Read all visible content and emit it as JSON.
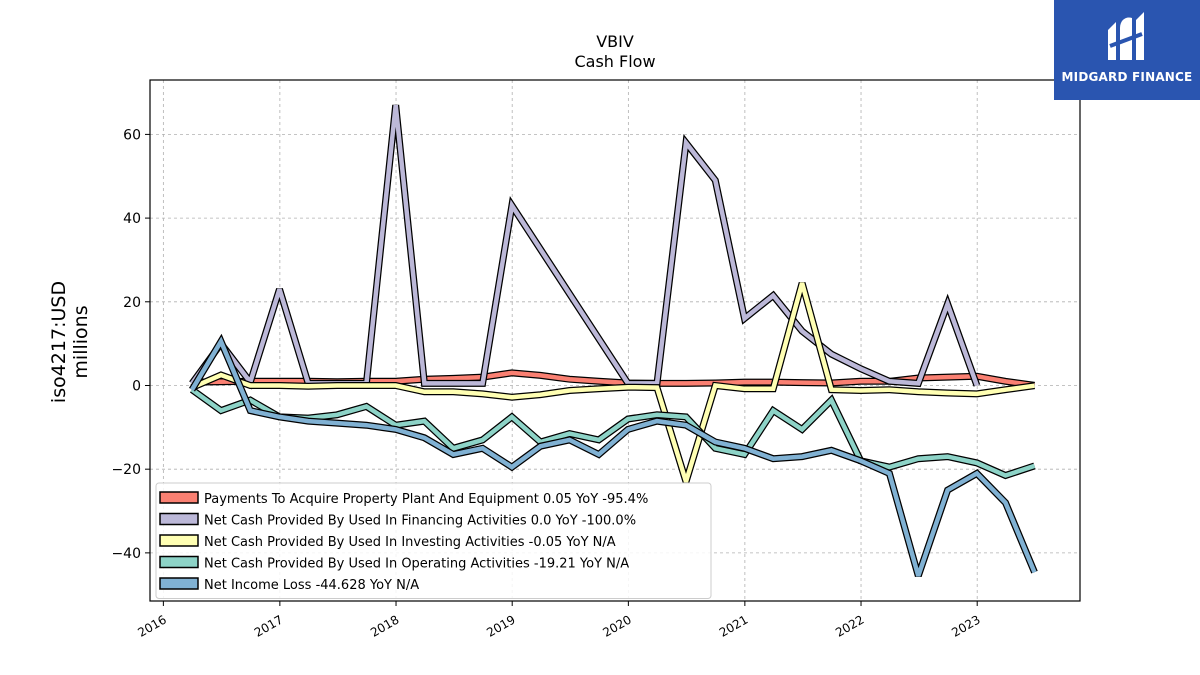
{
  "logo": {
    "brand": "MIDGARD FINANCE",
    "icon": "midgard-logo-icon",
    "color": "#2a55b0"
  },
  "chart_data": {
    "type": "line",
    "title": "VBIV",
    "subtitle": "Cash Flow",
    "ylabel_line1": "iso4217:USD",
    "ylabel_line2": "millions",
    "xlim": [
      "2015-11-20",
      "2023-11-20"
    ],
    "ylim": [
      -51.5,
      73
    ],
    "yticks": [
      -40,
      -20,
      0,
      20,
      40,
      60
    ],
    "ytick_labels": [
      "−40",
      "−20",
      "0",
      "20",
      "40",
      "60"
    ],
    "xticks": [
      "2016-01-01",
      "2017-01-01",
      "2018-01-01",
      "2019-01-01",
      "2020-01-01",
      "2021-01-01",
      "2022-01-01",
      "2023-01-01"
    ],
    "xtick_labels": [
      "2016",
      "2017",
      "2018",
      "2019",
      "2020",
      "2021",
      "2022",
      "2023"
    ],
    "grid": true,
    "legend_position": "lower-left",
    "series": [
      {
        "name": "Payments To Acquire Property Plant And Equipment",
        "legend": "Payments To Acquire Property Plant And Equipment  0.05 YoY -95.4%",
        "color": "#fa8072",
        "points": [
          [
            "2016-03-31",
            0.8
          ],
          [
            "2016-06-30",
            0.9
          ],
          [
            "2016-09-30",
            1.0
          ],
          [
            "2016-12-31",
            1.0
          ],
          [
            "2017-03-31",
            1.0
          ],
          [
            "2017-06-30",
            0.9
          ],
          [
            "2017-09-30",
            1.0
          ],
          [
            "2017-12-31",
            1.0
          ],
          [
            "2018-03-31",
            1.5
          ],
          [
            "2018-06-30",
            1.7
          ],
          [
            "2018-09-30",
            2.0
          ],
          [
            "2018-12-31",
            3.0
          ],
          [
            "2019-03-31",
            2.4
          ],
          [
            "2019-06-30",
            1.5
          ],
          [
            "2019-09-30",
            1.0
          ],
          [
            "2019-12-31",
            0.6
          ],
          [
            "2020-03-31",
            0.5
          ],
          [
            "2020-06-30",
            0.5
          ],
          [
            "2020-09-30",
            0.6
          ],
          [
            "2020-12-31",
            0.8
          ],
          [
            "2021-03-31",
            0.8
          ],
          [
            "2021-06-30",
            0.7
          ],
          [
            "2021-09-30",
            0.6
          ],
          [
            "2021-12-31",
            1.0
          ],
          [
            "2022-03-31",
            1.0
          ],
          [
            "2022-06-30",
            1.8
          ],
          [
            "2022-09-30",
            2.0
          ],
          [
            "2022-12-31",
            2.2
          ],
          [
            "2023-03-31",
            1.0
          ],
          [
            "2023-06-30",
            0.05
          ]
        ]
      },
      {
        "name": "Net Cash Provided By Used In Financing Activities",
        "legend": "Net Cash Provided By Used In Financing Activities  0.0 YoY -100.0%",
        "color": "#bcb8d8",
        "points": [
          [
            "2016-03-31",
            0.5
          ],
          [
            "2016-06-30",
            10.0
          ],
          [
            "2016-09-30",
            0.8
          ],
          [
            "2016-12-31",
            23.0
          ],
          [
            "2017-03-31",
            0.5
          ],
          [
            "2017-06-30",
            0.5
          ],
          [
            "2017-09-30",
            0.5
          ],
          [
            "2017-12-31",
            67.0
          ],
          [
            "2018-03-31",
            0.5
          ],
          [
            "2018-06-30",
            0.5
          ],
          [
            "2018-09-30",
            0.5
          ],
          [
            "2018-12-31",
            43.0
          ],
          [
            "2019-12-31",
            0.5
          ],
          [
            "2020-03-31",
            0.5
          ],
          [
            "2020-06-30",
            58.0
          ],
          [
            "2020-09-30",
            49.0
          ],
          [
            "2020-12-31",
            16.0
          ],
          [
            "2021-03-31",
            21.5
          ],
          [
            "2021-06-30",
            13.0
          ],
          [
            "2021-09-30",
            7.5
          ],
          [
            "2021-12-31",
            4.0
          ],
          [
            "2022-03-31",
            1.0
          ],
          [
            "2022-06-30",
            0.5
          ],
          [
            "2022-09-30",
            19.5
          ],
          [
            "2022-12-31",
            0.0
          ]
        ]
      },
      {
        "name": "Net Cash Provided By Used In Investing Activities",
        "legend": "Net Cash Provided By Used In Investing Activities  -0.05 YoY N/A",
        "color": "#ffffb3",
        "points": [
          [
            "2016-03-31",
            -0.5
          ],
          [
            "2016-06-30",
            2.5
          ],
          [
            "2016-09-30",
            0.0
          ],
          [
            "2016-12-31",
            0.0
          ],
          [
            "2017-03-31",
            -0.2
          ],
          [
            "2017-06-30",
            0.0
          ],
          [
            "2017-09-30",
            0.0
          ],
          [
            "2017-12-31",
            0.0
          ],
          [
            "2018-03-31",
            -1.5
          ],
          [
            "2018-06-30",
            -1.5
          ],
          [
            "2018-09-30",
            -2.0
          ],
          [
            "2018-12-31",
            -2.8
          ],
          [
            "2019-03-31",
            -2.2
          ],
          [
            "2019-06-30",
            -1.2
          ],
          [
            "2019-09-30",
            -0.8
          ],
          [
            "2019-12-31",
            -0.4
          ],
          [
            "2020-03-31",
            -0.5
          ],
          [
            "2020-06-30",
            -23.0
          ],
          [
            "2020-09-30",
            0.0
          ],
          [
            "2020-12-31",
            -0.8
          ],
          [
            "2021-03-31",
            -0.8
          ],
          [
            "2021-06-30",
            24.5
          ],
          [
            "2021-09-30",
            -1.0
          ],
          [
            "2021-12-31",
            -1.2
          ],
          [
            "2022-03-31",
            -1.0
          ],
          [
            "2022-06-30",
            -1.5
          ],
          [
            "2022-09-30",
            -1.8
          ],
          [
            "2022-12-31",
            -2.0
          ],
          [
            "2023-03-31",
            -1.0
          ],
          [
            "2023-06-30",
            -0.05
          ]
        ]
      },
      {
        "name": "Net Cash Provided By Used In Operating Activities",
        "legend": "Net Cash Provided By Used In Operating Activities  -19.21 YoY N/A",
        "color": "#8dd3c7",
        "points": [
          [
            "2016-03-31",
            -1.0
          ],
          [
            "2016-06-30",
            -6.0
          ],
          [
            "2016-09-30",
            -3.5
          ],
          [
            "2016-12-31",
            -7.5
          ],
          [
            "2017-03-31",
            -7.8
          ],
          [
            "2017-06-30",
            -7.0
          ],
          [
            "2017-09-30",
            -5.0
          ],
          [
            "2017-12-31",
            -9.5
          ],
          [
            "2018-03-31",
            -8.5
          ],
          [
            "2018-06-30",
            -15.0
          ],
          [
            "2018-09-30",
            -13.0
          ],
          [
            "2018-12-31",
            -7.5
          ],
          [
            "2019-03-31",
            -13.5
          ],
          [
            "2019-06-30",
            -11.5
          ],
          [
            "2019-09-30",
            -13.0
          ],
          [
            "2019-12-31",
            -8.0
          ],
          [
            "2020-03-31",
            -7.0
          ],
          [
            "2020-06-30",
            -7.5
          ],
          [
            "2020-09-30",
            -15.0
          ],
          [
            "2020-12-31",
            -16.5
          ],
          [
            "2021-03-31",
            -6.0
          ],
          [
            "2021-06-30",
            -10.5
          ],
          [
            "2021-09-30",
            -3.5
          ],
          [
            "2021-12-31",
            -18.0
          ],
          [
            "2022-03-31",
            -19.5
          ],
          [
            "2022-06-30",
            -17.5
          ],
          [
            "2022-09-30",
            -17.0
          ],
          [
            "2022-12-31",
            -18.5
          ],
          [
            "2023-03-31",
            -21.5
          ],
          [
            "2023-06-30",
            -19.21
          ]
        ]
      },
      {
        "name": "Net Income Loss",
        "legend": "Net Income Loss  -44.628 YoY N/A",
        "color": "#80b1d3",
        "points": [
          [
            "2016-03-31",
            -1.0
          ],
          [
            "2016-06-30",
            10.5
          ],
          [
            "2016-09-30",
            -6.0
          ],
          [
            "2016-12-31",
            -7.5
          ],
          [
            "2017-03-31",
            -8.5
          ],
          [
            "2017-06-30",
            -9.0
          ],
          [
            "2017-09-30",
            -9.5
          ],
          [
            "2017-12-31",
            -10.5
          ],
          [
            "2018-03-31",
            -12.5
          ],
          [
            "2018-06-30",
            -16.5
          ],
          [
            "2018-09-30",
            -15.0
          ],
          [
            "2018-12-31",
            -19.5
          ],
          [
            "2019-03-31",
            -14.5
          ],
          [
            "2019-06-30",
            -13.0
          ],
          [
            "2019-09-30",
            -16.5
          ],
          [
            "2019-12-31",
            -10.5
          ],
          [
            "2020-03-31",
            -8.5
          ],
          [
            "2020-06-30",
            -9.5
          ],
          [
            "2020-09-30",
            -13.5
          ],
          [
            "2020-12-31",
            -15.0
          ],
          [
            "2021-03-31",
            -17.5
          ],
          [
            "2021-06-30",
            -17.0
          ],
          [
            "2021-09-30",
            -15.5
          ],
          [
            "2021-12-31",
            -18.0
          ],
          [
            "2022-03-31",
            -21.0
          ],
          [
            "2022-06-30",
            -45.5
          ],
          [
            "2022-09-30",
            -25.0
          ],
          [
            "2022-12-31",
            -21.0
          ],
          [
            "2023-03-31",
            -28.0
          ],
          [
            "2023-06-30",
            -44.628
          ]
        ]
      }
    ]
  }
}
